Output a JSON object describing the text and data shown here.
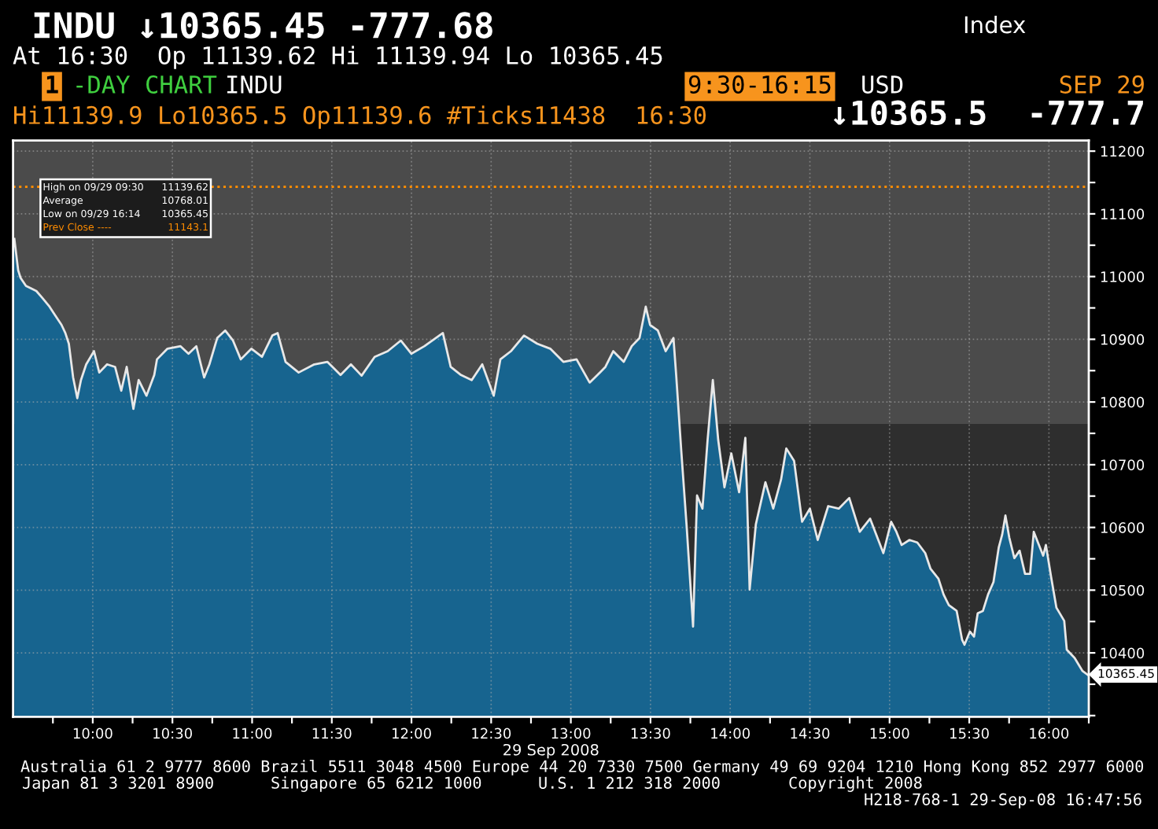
{
  "chart_data": {
    "type": "area",
    "title": "INDU ↓10365.45 -777.68",
    "subtitle": "At 16:30  Op 11139.62 Hi 11139.94 Lo 10365.45",
    "xlabel": "29 Sep 2008",
    "x": [
      9.508,
      9.532,
      9.547,
      9.581,
      9.614,
      9.646,
      9.68,
      9.729,
      9.762,
      9.804,
      9.828,
      9.85,
      9.877,
      9.903,
      9.926,
      9.959,
      10.008,
      10.041,
      10.09,
      10.14,
      10.179,
      10.213,
      10.255,
      10.288,
      10.337,
      10.386,
      10.403,
      10.469,
      10.551,
      10.601,
      10.65,
      10.699,
      10.732,
      10.781,
      10.831,
      10.88,
      10.929,
      10.996,
      11.062,
      11.127,
      11.16,
      11.21,
      11.292,
      11.39,
      11.472,
      11.555,
      11.62,
      11.687,
      11.769,
      11.851,
      11.933,
      11.999,
      12.081,
      12.197,
      12.246,
      12.311,
      12.378,
      12.444,
      12.516,
      12.558,
      12.624,
      12.706,
      12.789,
      12.871,
      12.953,
      13.036,
      13.118,
      13.167,
      13.217,
      13.266,
      13.332,
      13.382,
      13.431,
      13.47,
      13.497,
      13.546,
      13.595,
      13.644,
      13.661,
      13.693,
      13.727,
      13.767,
      13.792,
      13.826,
      13.858,
      13.891,
      13.925,
      13.964,
      14.007,
      14.056,
      14.095,
      14.122,
      14.161,
      14.221,
      14.27,
      14.319,
      14.352,
      14.401,
      14.451,
      14.5,
      14.549,
      14.615,
      14.681,
      14.747,
      14.813,
      14.878,
      14.961,
      15.01,
      15.043,
      15.076,
      15.125,
      15.174,
      15.224,
      15.257,
      15.307,
      15.339,
      15.372,
      15.421,
      15.455,
      15.47,
      15.504,
      15.53,
      15.553,
      15.586,
      15.618,
      15.652,
      15.685,
      15.707,
      15.727,
      15.751,
      15.783,
      15.816,
      15.85,
      15.882,
      15.905,
      15.931,
      15.964,
      15.981,
      16.013,
      16.047,
      16.096,
      16.112,
      16.161,
      16.211,
      16.244
    ],
    "series": [
      {
        "color": "#17648f",
        "values": [
          11060,
          11010,
          10998,
          10985,
          10981,
          10977,
          10967,
          10952,
          10939,
          10923,
          10910,
          10893,
          10839,
          10806,
          10835,
          10860,
          10881,
          10847,
          10860,
          10856,
          10818,
          10856,
          10789,
          10835,
          10810,
          10843,
          10868,
          10885,
          10889,
          10877,
          10889,
          10839,
          10860,
          10902,
          10914,
          10898,
          10868,
          10885,
          10872,
          10906,
          10910,
          10864,
          10847,
          10860,
          10864,
          10843,
          10860,
          10842,
          10872,
          10881,
          10898,
          10877,
          10889,
          10910,
          10856,
          10843,
          10835,
          10860,
          10810,
          10868,
          10881,
          10906,
          10893,
          10885,
          10864,
          10868,
          10831,
          10843,
          10856,
          10881,
          10864,
          10889,
          10902,
          10952,
          10923,
          10914,
          10881,
          10902,
          10843,
          10722,
          10601,
          10442,
          10651,
          10630,
          10739,
          10835,
          10739,
          10664,
          10718,
          10656,
          10743,
          10501,
          10605,
          10672,
          10630,
          10676,
          10726,
          10706,
          10609,
          10630,
          10580,
          10634,
          10630,
          10647,
          10593,
          10614,
          10559,
          10609,
          10593,
          10572,
          10580,
          10576,
          10559,
          10534,
          10518,
          10493,
          10476,
          10467,
          10421,
          10413,
          10434,
          10426,
          10463,
          10467,
          10493,
          10513,
          10568,
          10589,
          10619,
          10584,
          10551,
          10563,
          10526,
          10526,
          10593,
          10576,
          10555,
          10572,
          10522,
          10472,
          10451,
          10405,
          10392,
          10371,
          10365
        ]
      }
    ],
    "xlim": [
      9.5,
      16.25
    ],
    "xticks": [
      {
        "value": 9.75,
        "label": null
      },
      {
        "value": 10,
        "label": "10:00"
      },
      {
        "value": 10.25,
        "label": null
      },
      {
        "value": 10.5,
        "label": "10:30"
      },
      {
        "value": 10.75,
        "label": null
      },
      {
        "value": 11,
        "label": "11:00"
      },
      {
        "value": 11.25,
        "label": null
      },
      {
        "value": 11.5,
        "label": "11:30"
      },
      {
        "value": 11.75,
        "label": null
      },
      {
        "value": 12,
        "label": "12:00"
      },
      {
        "value": 12.25,
        "label": null
      },
      {
        "value": 12.5,
        "label": "12:30"
      },
      {
        "value": 12.75,
        "label": null
      },
      {
        "value": 13,
        "label": "13:00"
      },
      {
        "value": 13.25,
        "label": null
      },
      {
        "value": 13.5,
        "label": "13:30"
      },
      {
        "value": 13.75,
        "label": null
      },
      {
        "value": 14,
        "label": "14:00"
      },
      {
        "value": 14.25,
        "label": null
      },
      {
        "value": 14.5,
        "label": "14:30"
      },
      {
        "value": 14.75,
        "label": null
      },
      {
        "value": 15,
        "label": "15:00"
      },
      {
        "value": 15.25,
        "label": null
      },
      {
        "value": 15.5,
        "label": "15:30"
      },
      {
        "value": 15.75,
        "label": null
      },
      {
        "value": 16,
        "label": "16:00"
      },
      {
        "value": 16.25,
        "label": null
      }
    ],
    "ylim": [
      10298,
      11217
    ],
    "yticks": [
      {
        "value": 10300,
        "label": null
      },
      {
        "value": 10350,
        "label": null
      },
      10400,
      {
        "value": 10450,
        "label": null
      },
      10500,
      {
        "value": 10550,
        "label": null
      },
      10600,
      {
        "value": 10650,
        "label": null
      },
      10700,
      {
        "value": 10750,
        "label": null
      },
      10800,
      {
        "value": 10850,
        "label": null
      },
      10900,
      {
        "value": 10950,
        "label": null
      },
      11000,
      {
        "value": 11050,
        "label": null
      },
      11100,
      {
        "value": 11150,
        "label": null
      },
      11200
    ],
    "grid": true,
    "ref_lines": [
      {
        "axis": "y",
        "value": 11143.1,
        "label": "Prev Close ----",
        "color": "#ff8c00",
        "line_style": "dotted"
      }
    ],
    "bands": [
      {
        "axis": "y",
        "from": 10765,
        "to": 11217,
        "color": "#4b4b4b"
      }
    ],
    "annotations": [
      "Index",
      "1",
      "-DAY CHART",
      "INDU",
      "9:30-16:15",
      "USD",
      "SEP 29",
      "Hi11139.9 Lo10365.5 Op11139.6 #Ticks11438  16:30",
      "↓10365.5  -777.7",
      "High on 09/29 09:30",
      "11139.62",
      "Average",
      "10768.01",
      "Low on 09/29 16:14",
      "10365.45",
      "11143.1",
      {
        "text": "10365.45",
        "x": 16.25,
        "y": 10365.45
      },
      "Australia 61 2 9777 8600 Brazil 5511 3048 4500 Europe 44 20 7330 7500 Germany 49 69 9204 1210 Hong Kong 852 2977 6000",
      "Japan 81 3 3201 8900",
      "Singapore 65 6212 1000",
      "U.S. 1 212 318 2000",
      "Copyright 2008",
      "H218-768-1 29-Sep-08 16:47:56"
    ]
  }
}
